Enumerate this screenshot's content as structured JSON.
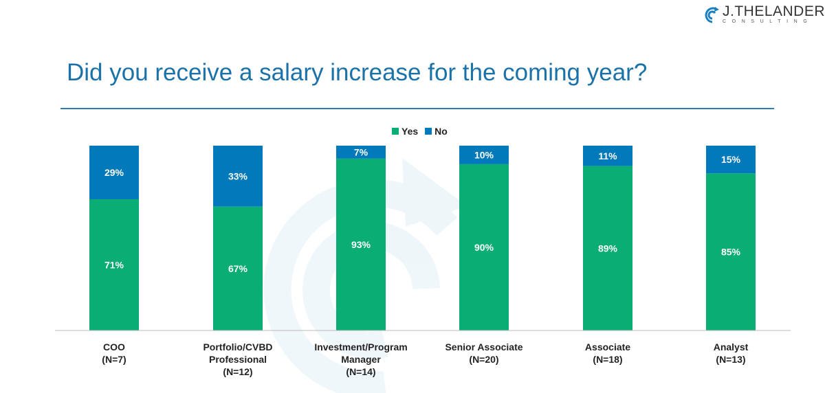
{
  "logo": {
    "name": "J.THELANDER",
    "sub": "CONSULTING"
  },
  "title": "Did you receive a salary increase for the coming year?",
  "colors": {
    "yes": "#0aae74",
    "no": "#0179ba",
    "title": "#1b72a9"
  },
  "chart_data": {
    "type": "bar",
    "stacked": true,
    "title": "Did you receive a salary increase for the coming year?",
    "legend_position": "top-center",
    "categories": [
      "COO",
      "Portfolio/CVBD Professional",
      "Investment/Program Manager",
      "Senior Associate",
      "Associate",
      "Analyst"
    ],
    "category_labels": [
      [
        "COO",
        "(N=7)"
      ],
      [
        "Portfolio/CVBD",
        "Professional",
        "(N=12)"
      ],
      [
        "Investment/Program",
        "Manager",
        "(N=14)"
      ],
      [
        "Senior Associate",
        "(N=20)"
      ],
      [
        "Associate",
        "(N=18)"
      ],
      [
        "Analyst",
        "(N=13)"
      ]
    ],
    "series": [
      {
        "name": "Yes",
        "values": [
          71,
          67,
          93,
          90,
          89,
          85
        ],
        "labels": [
          "71%",
          "67%",
          "93%",
          "90%",
          "89%",
          "85%"
        ]
      },
      {
        "name": "No",
        "values": [
          29,
          33,
          7,
          10,
          11,
          15
        ],
        "labels": [
          "29%",
          "33%",
          "7%",
          "10%",
          "11%",
          "15%"
        ]
      }
    ],
    "ylim": [
      0,
      100
    ],
    "xlabel": "",
    "ylabel": "",
    "grid": false
  }
}
